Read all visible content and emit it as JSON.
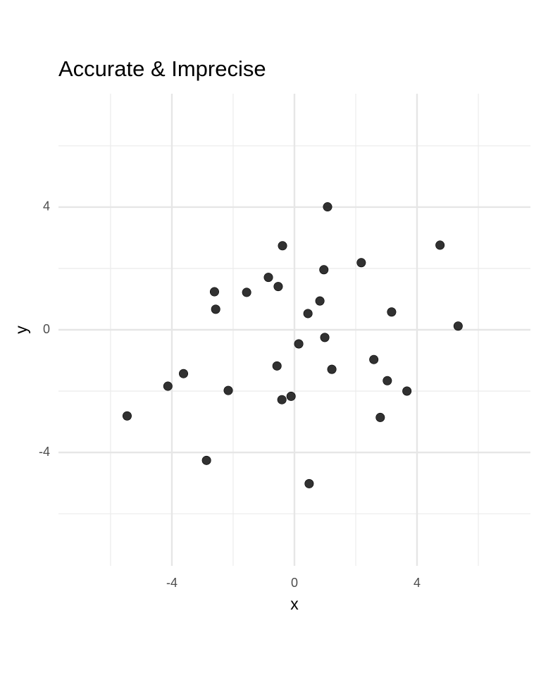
{
  "chart_data": {
    "type": "scatter",
    "title": "Accurate & Imprecise",
    "x_label": "x",
    "y_label": "y",
    "x": [
      1.08,
      -0.39,
      4.75,
      2.18,
      0.96,
      -0.85,
      -2.61,
      -1.56,
      -0.53,
      0.83,
      -2.57,
      0.44,
      3.17,
      5.34,
      0.99,
      0.14,
      2.59,
      -0.57,
      1.22,
      -3.62,
      -4.13,
      -2.16,
      3.03,
      3.67,
      -0.11,
      -0.41,
      -5.46,
      2.8,
      -2.87,
      0.48
    ],
    "y": [
      4.01,
      2.74,
      2.76,
      2.19,
      1.96,
      1.71,
      1.24,
      1.22,
      1.41,
      0.94,
      0.67,
      0.53,
      0.58,
      0.12,
      -0.25,
      -0.46,
      -0.97,
      -1.18,
      -1.29,
      -1.43,
      -1.84,
      -1.98,
      -1.66,
      -2.0,
      -2.17,
      -2.28,
      -2.81,
      -2.86,
      -4.26,
      -5.02
    ],
    "color": "#1f1f1f",
    "xlim": [
      -7.7,
      7.7
    ],
    "ylim": [
      -7.7,
      7.7
    ],
    "xticks": [
      -4,
      0,
      4
    ],
    "yticks": [
      -4,
      0,
      4
    ],
    "x_minor_ticks": [
      -6,
      -2,
      2,
      6
    ],
    "y_minor_ticks": [
      -6,
      -2,
      2,
      6
    ],
    "grid": true
  }
}
